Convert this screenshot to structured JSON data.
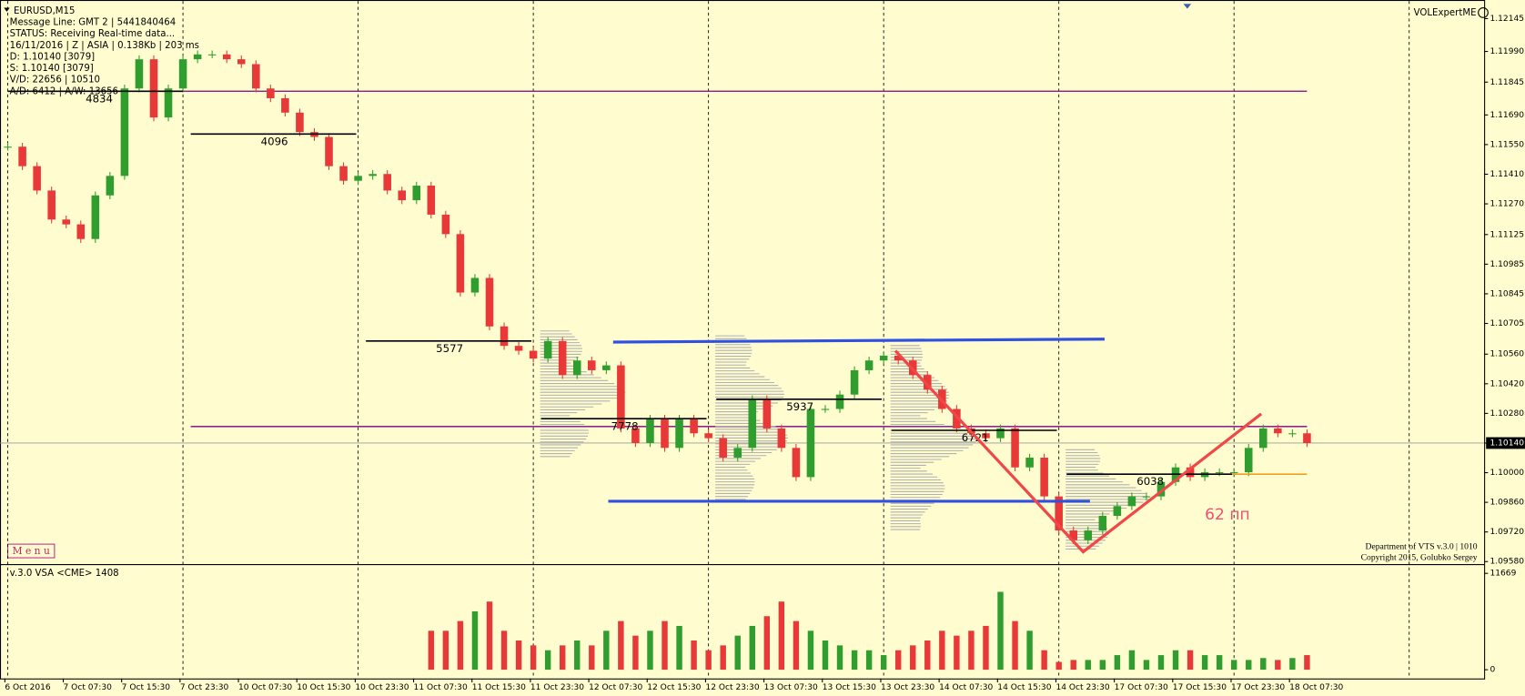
{
  "chart_data": [
    {
      "type": "candlestick",
      "title": "EURUSD,M15",
      "info_lines": [
        "Message Line: GMT 2 | 5441840464",
        "STATUS:  Receiving Real-time data...",
        "16/11/2016 | Z | ASIA | 0.138Kb | 203 ms",
        "D: 1.10140  [3079]",
        "S: 1.10140  [3079]",
        "V/D: 22656 | 10510",
        "A/D: 6412 | A/W: 13656"
      ],
      "indicator": "VOLExpertME",
      "x_labels": [
        "6 Oct 2016",
        "7 Oct 07:30",
        "7 Oct 15:30",
        "7 Oct 23:30",
        "10 Oct 07:30",
        "10 Oct 15:30",
        "10 Oct 23:30",
        "11 Oct 07:30",
        "11 Oct 15:30",
        "11 Oct 23:30",
        "12 Oct 07:30",
        "12 Oct 15:30",
        "12 Oct 23:30",
        "13 Oct 07:30",
        "13 Oct 15:30",
        "13 Oct 23:30",
        "14 Oct 07:30",
        "14 Oct 15:30",
        "14 Oct 23:30",
        "17 Oct 07:30",
        "17 Oct 15:30",
        "17 Oct 23:30",
        "18 Oct 07:30"
      ],
      "values": [
        1.1154,
        1.11448,
        1.11333,
        1.11196,
        1.11173,
        1.11104,
        1.1131,
        1.11402,
        1.11815,
        1.11953,
        1.11678,
        1.11815,
        1.11953,
        1.11976,
        1.11976,
        1.11953,
        1.1193,
        1.11815,
        1.11769,
        1.11701,
        1.11609,
        1.11586,
        1.11448,
        1.11379,
        1.11402,
        1.11411,
        1.11333,
        1.11287,
        1.11356,
        1.11219,
        1.11127,
        1.10851,
        1.1092,
        1.10691,
        1.10599,
        1.10576,
        1.10539,
        1.10622,
        1.10461,
        1.1053,
        1.10484,
        1.10507,
        1.10209,
        1.1014,
        1.10255,
        1.10117,
        1.10255,
        1.10186,
        1.10163,
        1.10071,
        1.10117,
        1.10347,
        1.10209,
        1.10117,
        1.09979,
        1.10301,
        1.10301,
        1.10369,
        1.10484,
        1.1053,
        1.10553,
        1.1053,
        1.10461,
        1.10392,
        1.10301,
        1.10209,
        1.10186,
        1.10163,
        1.10209,
        1.10025,
        1.10071,
        1.09888,
        1.09727,
        1.09681,
        1.09727,
        1.09796,
        1.09842,
        1.09888,
        1.09888,
        1.09956,
        1.10025,
        1.09979,
        1.10002,
        1.10002,
        1.10002,
        1.10117,
        1.10209,
        1.10186,
        1.10186,
        1.1014
      ],
      "ylim": [
        1.09575,
        1.1221
      ],
      "yticks": [
        1.12145,
        {
          "value": 1.1199,
          "label": "1.11990"
        },
        1.11845,
        {
          "value": 1.1169,
          "label": "1.11690"
        },
        {
          "value": 1.1155,
          "label": "1.11550"
        },
        {
          "value": 1.1141,
          "label": "1.11410"
        },
        {
          "value": 1.1127,
          "label": "1.11270"
        },
        1.11125,
        1.10985,
        1.10845,
        1.10705,
        {
          "value": 1.1056,
          "label": "1.10560"
        },
        {
          "value": 1.1042,
          "label": "1.10420"
        },
        {
          "value": 1.1028,
          "label": "1.10280"
        },
        {
          "value": 1.1014,
          "label": "1.10140"
        },
        {
          "value": 1.1,
          "label": "1.10000"
        },
        {
          "value": 1.0986,
          "label": "1.09860"
        },
        {
          "value": 1.0972,
          "label": "1.09720"
        },
        {
          "value": 1.0958,
          "label": "1.09580"
        }
      ],
      "current_price": 1.1014,
      "levels": [
        {
          "price": 1.11802,
          "volume": 4834
        },
        {
          "price": 1.116,
          "volume": 4096
        },
        {
          "price": 1.10622,
          "volume": 5577
        },
        {
          "price": 1.10255,
          "volume": 7778
        },
        {
          "price": 1.10347,
          "volume": 5937
        },
        {
          "price": 1.102,
          "volume": 6721
        },
        {
          "price": 1.09993,
          "volume": 6038
        }
      ],
      "hlines": [
        1.11802,
        1.10218
      ],
      "channel": [
        [
          1.10617,
          1.10631
        ],
        [
          1.09865,
          1.09865
        ]
      ],
      "zigzag": [
        1.10576,
        1.09626,
        1.10278
      ],
      "annotation": "62 пп",
      "up_color": "#2f9e2f",
      "down_color": "#e83838"
    },
    {
      "type": "bar",
      "title": "v.3.0 VSA <CME> 1408",
      "values": [
        null,
        null,
        null,
        null,
        null,
        null,
        null,
        null,
        null,
        null,
        null,
        null,
        null,
        null,
        null,
        null,
        null,
        null,
        null,
        null,
        null,
        null,
        null,
        null,
        null,
        null,
        null,
        null,
        null,
        4715,
        4715,
        5894,
        7072,
        8251,
        4715,
        3536,
        2947,
        2357,
        2947,
        3536,
        2947,
        4715,
        5894,
        4125,
        4715,
        5894,
        5304,
        3536,
        2357,
        2947,
        4125,
        5304,
        6483,
        8251,
        5894,
        4715,
        3536,
        2947,
        2357,
        2357,
        1768,
        2357,
        2947,
        3536,
        4715,
        4125,
        4715,
        5304,
        9430,
        5894,
        4715,
        2357,
        943,
        1179,
        1179,
        1179,
        1768,
        2357,
        1179,
        1768,
        2357,
        2357,
        1768,
        1768,
        1179,
        1179,
        1414,
        1179,
        1414,
        1768
      ],
      "ylim": [
        0,
        11669
      ],
      "yticks": [
        0,
        11669
      ]
    }
  ],
  "menu": "M e n u",
  "credits": [
    "Department of VTS  v.3.0 | 1010",
    "Copyright 2015, Golubko Sergey"
  ]
}
